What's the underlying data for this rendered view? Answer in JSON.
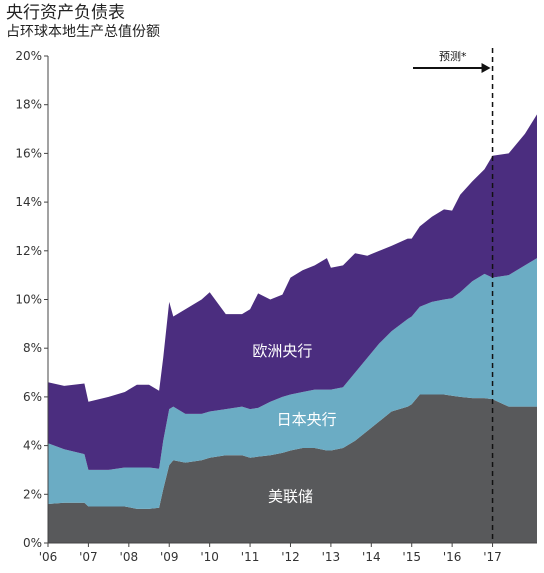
{
  "chart_data": {
    "type": "area",
    "title": "央行资产负债表",
    "subtitle": "占环球本地生产总值份额",
    "ylim": [
      0,
      20
    ],
    "y_ticks": [
      "0%",
      "2%",
      "4%",
      "6%",
      "8%",
      "10%",
      "12%",
      "14%",
      "16%",
      "18%",
      "20%"
    ],
    "y_tick_values": [
      0,
      2,
      4,
      6,
      8,
      10,
      12,
      14,
      16,
      18,
      20
    ],
    "x_range": [
      2006,
      2018.1
    ],
    "x_ticks": [
      "'06",
      "'07",
      "'08",
      "'09",
      "'10",
      "'11",
      "'12",
      "'13",
      "'14",
      "'15",
      "'16",
      "'17"
    ],
    "x_tick_values": [
      2006,
      2007,
      2008,
      2009,
      2010,
      2011,
      2012,
      2013,
      2014,
      2015,
      2016,
      2017
    ],
    "stacking": "stacked",
    "forecast": {
      "label": "预测*",
      "start_x": 2017.0
    },
    "x": [
      2006.0,
      2006.4,
      2006.9,
      2007.0,
      2007.5,
      2007.9,
      2008.2,
      2008.5,
      2008.75,
      2008.85,
      2009.0,
      2009.1,
      2009.4,
      2009.8,
      2010.0,
      2010.4,
      2010.8,
      2011.0,
      2011.2,
      2011.5,
      2011.8,
      2012.0,
      2012.3,
      2012.6,
      2012.9,
      2013.0,
      2013.3,
      2013.6,
      2013.9,
      2014.2,
      2014.5,
      2014.9,
      2015.0,
      2015.2,
      2015.5,
      2015.8,
      2016.0,
      2016.2,
      2016.5,
      2016.8,
      2017.0,
      2017.4,
      2017.8,
      2018.1
    ],
    "series": [
      {
        "name": "美联储",
        "color": "#58595b",
        "values": [
          1.6,
          1.65,
          1.65,
          1.5,
          1.5,
          1.5,
          1.4,
          1.4,
          1.45,
          2.2,
          3.2,
          3.4,
          3.3,
          3.4,
          3.5,
          3.6,
          3.6,
          3.5,
          3.55,
          3.6,
          3.7,
          3.8,
          3.9,
          3.9,
          3.8,
          3.8,
          3.9,
          4.2,
          4.6,
          5.0,
          5.4,
          5.6,
          5.7,
          6.1,
          6.1,
          6.1,
          6.05,
          6.0,
          5.95,
          5.95,
          5.9,
          5.6,
          5.6,
          5.6
        ]
      },
      {
        "name": "日本央行",
        "color": "#6bacc4",
        "values": [
          2.5,
          2.2,
          2.0,
          1.5,
          1.5,
          1.6,
          1.7,
          1.7,
          1.6,
          2.0,
          2.3,
          2.2,
          2.0,
          1.9,
          1.9,
          1.9,
          2.0,
          2.0,
          2.0,
          2.2,
          2.3,
          2.3,
          2.3,
          2.4,
          2.5,
          2.5,
          2.5,
          2.8,
          3.0,
          3.2,
          3.3,
          3.6,
          3.6,
          3.6,
          3.8,
          3.9,
          4.0,
          4.3,
          4.8,
          5.1,
          5.0,
          5.4,
          5.8,
          6.1
        ]
      },
      {
        "name": "欧洲央行",
        "color": "#4b2d7f",
        "values": [
          2.5,
          2.6,
          2.9,
          2.8,
          3.0,
          3.1,
          3.4,
          3.4,
          3.2,
          3.4,
          4.4,
          3.7,
          4.3,
          4.7,
          4.9,
          3.9,
          3.8,
          4.1,
          4.7,
          4.2,
          4.2,
          4.8,
          5.0,
          5.1,
          5.4,
          5.0,
          5.0,
          4.9,
          4.2,
          3.8,
          3.5,
          3.3,
          3.2,
          3.3,
          3.5,
          3.7,
          3.6,
          4.0,
          4.1,
          4.3,
          5.0,
          5.0,
          5.4,
          5.9
        ]
      }
    ]
  }
}
